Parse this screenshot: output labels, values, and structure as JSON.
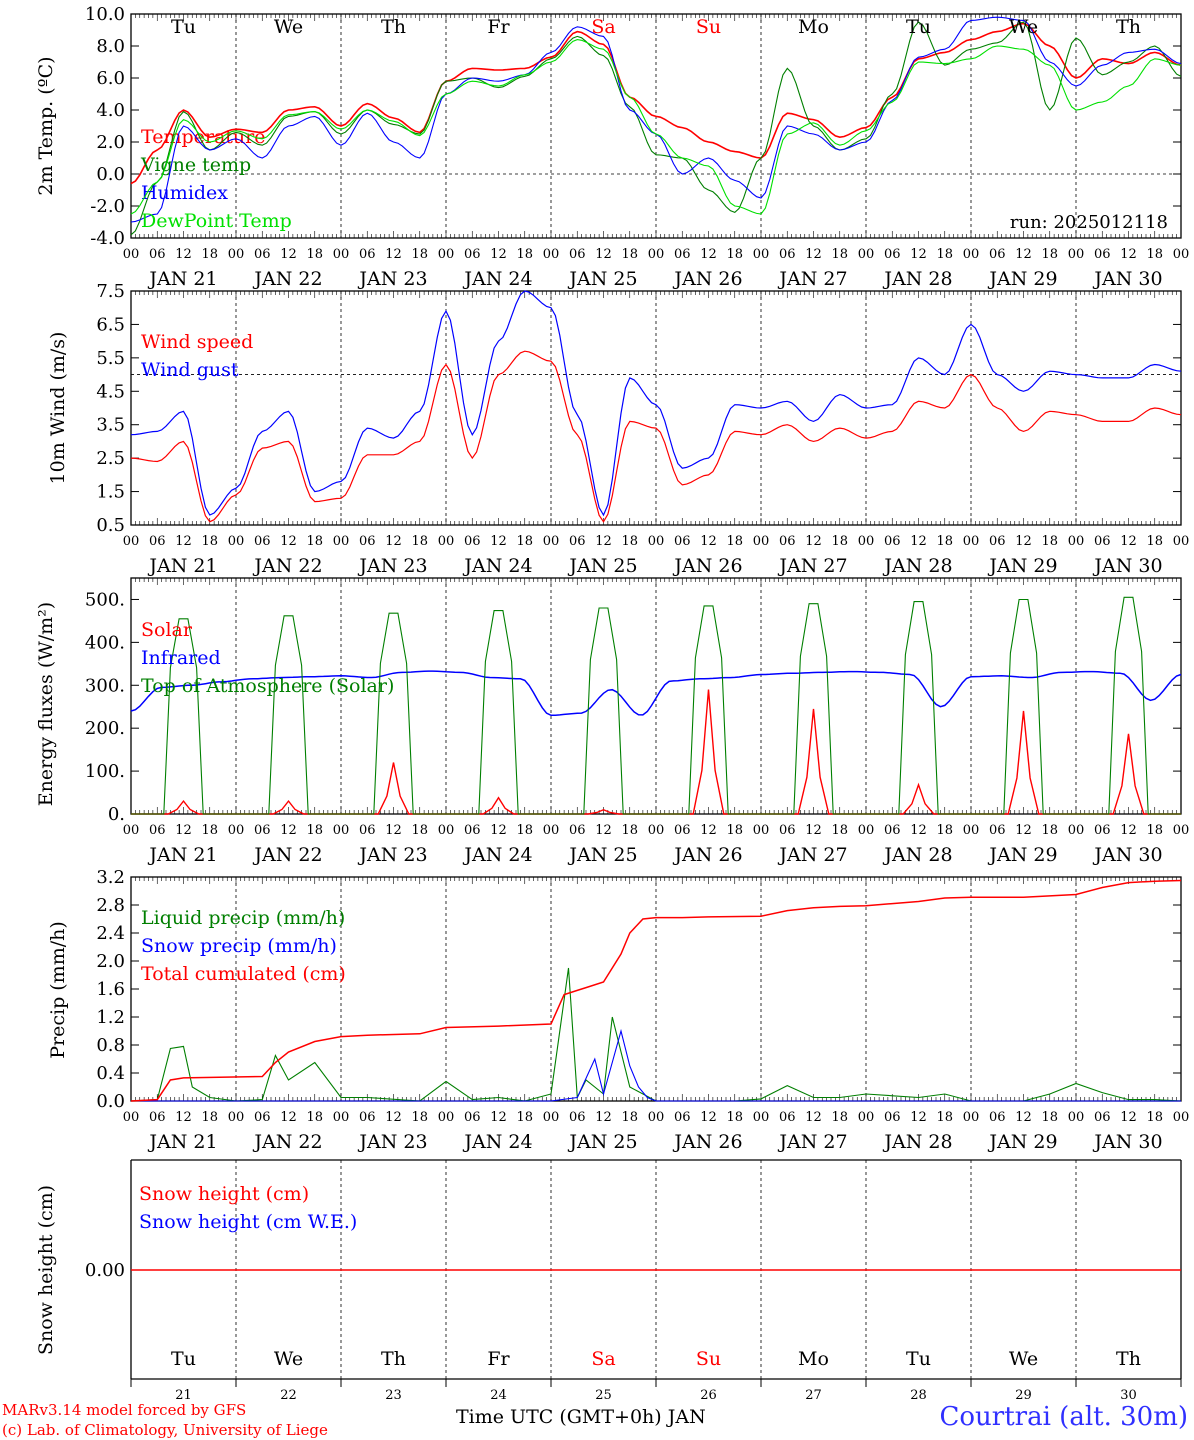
{
  "footer": {
    "credit_line1": "MARv3.14 model forced by GFS",
    "credit_line2": "(c) Lab. of Climatology, University of Liege",
    "x_title": "Time UTC (GMT+0h) JAN",
    "station": "Courtrai (alt. 30m)"
  },
  "colors": {
    "red": "#ff0000",
    "blue": "#0000ff",
    "green": "#007f00",
    "light_green": "#00e000",
    "weekend": "#ff0000"
  },
  "chart_data": [
    {
      "type": "line",
      "ylabel": "2m Temp. (ºC)",
      "ylim": [
        -4,
        10
      ],
      "yticks": [
        "-4.0",
        "-2.0",
        "0.0",
        "2.0",
        "4.0",
        "6.0",
        "8.0",
        "10.0"
      ],
      "run_label": "run: 2025012118",
      "weekdays": [
        "Tu",
        "We",
        "Th",
        "Fr",
        "Sa",
        "Su",
        "Mo",
        "Tu",
        "We",
        "Th"
      ],
      "days": [
        "JAN 21",
        "JAN 22",
        "JAN 23",
        "JAN 24",
        "JAN 25",
        "JAN 26",
        "JAN 27",
        "JAN 28",
        "JAN 29",
        "JAN 30"
      ],
      "hour_ticks": [
        "00",
        "06",
        "12",
        "18"
      ],
      "x_hours": [
        0,
        6,
        12,
        18,
        24,
        30,
        36,
        42,
        48,
        54,
        60,
        66,
        72,
        78,
        84,
        90,
        96,
        102,
        108,
        114,
        120,
        126,
        132,
        138,
        144,
        150,
        156,
        162,
        168,
        174,
        180,
        186,
        192,
        198,
        204,
        210,
        216,
        222,
        228,
        234,
        240
      ],
      "series": [
        {
          "name": "Temperature",
          "values": [
            -0.6,
            1.5,
            4.0,
            2.3,
            2.8,
            2.6,
            4.0,
            4.2,
            3.0,
            4.4,
            3.5,
            2.6,
            5.8,
            6.6,
            6.5,
            6.6,
            7.3,
            8.9,
            8.1,
            4.8,
            3.6,
            2.9,
            2.0,
            1.4,
            1.0,
            3.8,
            3.4,
            2.3,
            2.9,
            4.8,
            7.2,
            7.6,
            8.4,
            8.9,
            9.4,
            8.0,
            6.0,
            7.2,
            6.9,
            7.6,
            6.8
          ]
        },
        {
          "name": "Vigne temp",
          "values": [
            -3.8,
            -0.5,
            3.9,
            1.5,
            2.6,
            1.8,
            3.6,
            3.9,
            2.5,
            4.0,
            3.1,
            2.5,
            5.8,
            6.0,
            5.4,
            6.1,
            7.2,
            8.6,
            7.4,
            4.2,
            1.2,
            1.0,
            -1.0,
            -2.4,
            1.0,
            6.6,
            3.0,
            1.5,
            2.2,
            5.0,
            9.5,
            6.8,
            7.8,
            8.2,
            9.5,
            4.0,
            8.5,
            6.2,
            7.0,
            8.0,
            6.1
          ]
        },
        {
          "name": "Humidex",
          "values": [
            -3.0,
            -2.5,
            3.0,
            1.5,
            2.2,
            1.0,
            3.0,
            3.6,
            1.8,
            3.8,
            2.0,
            1.0,
            5.0,
            6.0,
            5.8,
            6.2,
            7.6,
            9.2,
            8.6,
            4.0,
            2.5,
            0.0,
            1.0,
            -0.4,
            -1.5,
            3.0,
            2.5,
            1.5,
            2.0,
            4.6,
            7.3,
            7.8,
            9.6,
            9.8,
            9.6,
            7.0,
            5.5,
            6.8,
            7.6,
            7.8,
            6.9
          ]
        },
        {
          "name": "DewPoint Temp",
          "values": [
            -2.5,
            -0.5,
            3.4,
            2.0,
            2.7,
            2.2,
            3.7,
            3.9,
            2.8,
            4.0,
            3.3,
            2.4,
            5.0,
            5.8,
            5.5,
            6.2,
            7.0,
            8.4,
            7.8,
            4.8,
            2.5,
            1.0,
            0.5,
            -2.0,
            -2.5,
            2.5,
            3.2,
            1.8,
            2.7,
            4.5,
            7.0,
            6.9,
            7.2,
            8.0,
            7.8,
            6.8,
            4.0,
            4.5,
            5.5,
            7.2,
            6.8
          ]
        }
      ]
    },
    {
      "type": "line",
      "ylabel": "10m Wind (m/s)",
      "ylim": [
        0.5,
        7.5
      ],
      "yticks": [
        "0.5",
        "1.5",
        "2.5",
        "3.5",
        "4.5",
        "5.5",
        "6.5",
        "7.5"
      ],
      "days": [
        "JAN 21",
        "JAN 22",
        "JAN 23",
        "JAN 24",
        "JAN 25",
        "JAN 26",
        "JAN 27",
        "JAN 28",
        "JAN 29",
        "JAN 30"
      ],
      "hour_ticks": [
        "00",
        "06",
        "12",
        "18"
      ],
      "x_hours": [
        0,
        6,
        12,
        18,
        24,
        30,
        36,
        42,
        48,
        54,
        60,
        66,
        72,
        78,
        84,
        90,
        96,
        102,
        108,
        114,
        120,
        126,
        132,
        138,
        144,
        150,
        156,
        162,
        168,
        174,
        180,
        186,
        192,
        198,
        204,
        210,
        216,
        222,
        228,
        234,
        240
      ],
      "series": [
        {
          "name": "Wind speed",
          "values": [
            2.5,
            2.4,
            3.0,
            0.6,
            1.4,
            2.8,
            3.0,
            1.2,
            1.3,
            2.6,
            2.6,
            3.0,
            5.3,
            2.5,
            5.0,
            5.7,
            5.4,
            3.2,
            0.6,
            3.6,
            3.4,
            1.7,
            2.0,
            3.3,
            3.2,
            3.5,
            3.0,
            3.4,
            3.1,
            3.3,
            4.2,
            4.0,
            5.0,
            4.0,
            3.3,
            3.9,
            3.8,
            3.6,
            3.6,
            4.0,
            3.8
          ]
        },
        {
          "name": "Wind gust",
          "values": [
            3.2,
            3.3,
            3.9,
            0.8,
            1.6,
            3.3,
            3.9,
            1.5,
            1.8,
            3.4,
            3.1,
            3.9,
            6.9,
            3.2,
            6.0,
            7.5,
            7.0,
            3.8,
            0.8,
            4.9,
            4.1,
            2.2,
            2.5,
            4.1,
            4.0,
            4.2,
            3.6,
            4.4,
            4.0,
            4.1,
            5.5,
            5.0,
            6.5,
            5.0,
            4.5,
            5.1,
            5.0,
            4.9,
            4.9,
            5.3,
            5.1
          ]
        }
      ],
      "reference_line": 5.0
    },
    {
      "type": "line",
      "ylabel": "Energy fluxes (W/m²)",
      "ylim": [
        0,
        550
      ],
      "yticks": [
        "0.",
        "100.",
        "200.",
        "300.",
        "400.",
        "500."
      ],
      "days": [
        "JAN 21",
        "JAN 22",
        "JAN 23",
        "JAN 24",
        "JAN 25",
        "JAN 26",
        "JAN 27",
        "JAN 28",
        "JAN 29",
        "JAN 30"
      ],
      "hour_ticks": [
        "00",
        "06",
        "12",
        "18"
      ],
      "series": [
        {
          "name": "Solar",
          "noon_peaks": [
            30,
            30,
            120,
            38,
            10,
            290,
            245,
            68,
            240,
            187
          ]
        },
        {
          "name": "Infrared",
          "values": [
            240,
            295,
            300,
            308,
            315,
            318,
            320,
            322,
            318,
            330,
            333,
            330,
            318,
            315,
            230,
            235,
            290,
            230,
            310,
            315,
            318,
            325,
            328,
            330,
            332,
            330,
            325,
            250,
            320,
            322,
            318,
            330,
            332,
            328,
            265,
            325
          ]
        },
        {
          "name": "Top of Atmosphere (Solar)",
          "noon_peaks": [
            455,
            462,
            468,
            474,
            480,
            485,
            490,
            495,
            500,
            505
          ]
        }
      ]
    },
    {
      "type": "line",
      "ylabel": "Precip (mm/h)",
      "ylim": [
        0,
        3.2
      ],
      "yticks": [
        "0.0",
        "0.4",
        "0.8",
        "1.2",
        "1.6",
        "2.0",
        "2.4",
        "2.8",
        "3.2"
      ],
      "days": [
        "JAN 21",
        "JAN 22",
        "JAN 23",
        "JAN 24",
        "JAN 25",
        "JAN 26",
        "JAN 27",
        "JAN 28",
        "JAN 29",
        "JAN 30"
      ],
      "hour_ticks": [
        "00",
        "06",
        "12",
        "18"
      ],
      "series": [
        {
          "name": "Liquid precip (mm/h)",
          "x": [
            0,
            6,
            9,
            12,
            14,
            18,
            24,
            30,
            33,
            36,
            42,
            48,
            54,
            66,
            72,
            78,
            84,
            90,
            96,
            98,
            100,
            102,
            104,
            108,
            110,
            114,
            120,
            126,
            132,
            138,
            144,
            150,
            156,
            162,
            168,
            180,
            186,
            192,
            198,
            204,
            210,
            216,
            222,
            228,
            234,
            240
          ],
          "values": [
            0,
            0.02,
            0.75,
            0.78,
            0.2,
            0.05,
            0,
            0.02,
            0.65,
            0.3,
            0.55,
            0.05,
            0.05,
            0,
            0.28,
            0.02,
            0.05,
            0,
            0.1,
            1.0,
            1.9,
            0.05,
            0.3,
            0.1,
            1.2,
            0.2,
            0,
            0,
            0,
            0,
            0.03,
            0.22,
            0.05,
            0.05,
            0.1,
            0.05,
            0.1,
            0,
            0,
            0,
            0.1,
            0.25,
            0.12,
            0.02,
            0.02,
            0
          ]
        },
        {
          "name": "Snow precip (mm/h)",
          "x": [
            0,
            96,
            102,
            106,
            108,
            112,
            114,
            116,
            118,
            120,
            240
          ],
          "values": [
            0,
            0,
            0.05,
            0.6,
            0.1,
            1.0,
            0.5,
            0.2,
            0.05,
            0,
            0
          ]
        },
        {
          "name": "Total cumulated (cm)",
          "x": [
            0,
            6,
            9,
            12,
            30,
            33,
            36,
            42,
            48,
            54,
            66,
            72,
            84,
            96,
            99,
            102,
            104,
            108,
            112,
            114,
            117,
            120,
            126,
            132,
            144,
            150,
            156,
            162,
            168,
            174,
            180,
            186,
            192,
            198,
            204,
            216,
            222,
            228,
            234,
            240
          ],
          "values": [
            0,
            0.02,
            0.3,
            0.33,
            0.35,
            0.55,
            0.7,
            0.85,
            0.92,
            0.94,
            0.96,
            1.05,
            1.07,
            1.1,
            1.52,
            1.58,
            1.62,
            1.7,
            2.1,
            2.4,
            2.6,
            2.62,
            2.62,
            2.63,
            2.64,
            2.72,
            2.76,
            2.78,
            2.79,
            2.82,
            2.85,
            2.9,
            2.91,
            2.91,
            2.91,
            2.95,
            3.05,
            3.12,
            3.14,
            3.15
          ]
        }
      ]
    },
    {
      "type": "line",
      "ylabel": "Snow height (cm)",
      "ytick": "0.00",
      "weekdays": [
        "Tu",
        "We",
        "Th",
        "Fr",
        "Sa",
        "Su",
        "Mo",
        "Tu",
        "We",
        "Th"
      ],
      "day_numbers": [
        "21",
        "22",
        "23",
        "24",
        "25",
        "26",
        "27",
        "28",
        "29",
        "30"
      ],
      "series": [
        {
          "name": "Snow height (cm)",
          "values": [
            0,
            0
          ]
        },
        {
          "name": "Snow height (cm W.E.)",
          "values": [
            0,
            0
          ]
        }
      ]
    }
  ]
}
